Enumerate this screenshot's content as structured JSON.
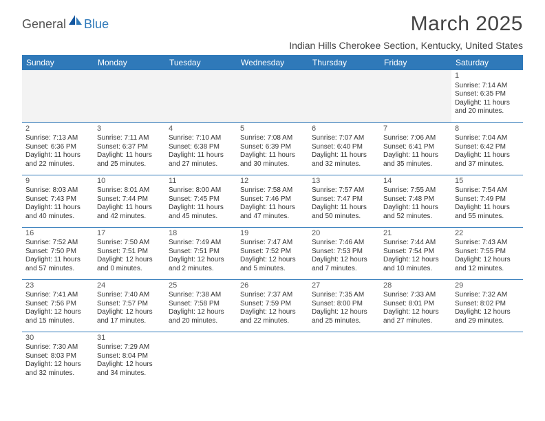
{
  "logo": {
    "part1": "General",
    "part2": "Blue"
  },
  "title": "March 2025",
  "location": "Indian Hills Cherokee Section, Kentucky, United States",
  "colors": {
    "header_bg": "#2f79b9",
    "header_fg": "#ffffff",
    "cell_border": "#2f79b9",
    "alt_row_bg": "#f3f3f3",
    "text": "#333333",
    "title_color": "#444444"
  },
  "day_headers": [
    "Sunday",
    "Monday",
    "Tuesday",
    "Wednesday",
    "Thursday",
    "Friday",
    "Saturday"
  ],
  "weeks": [
    [
      null,
      null,
      null,
      null,
      null,
      null,
      {
        "n": "1",
        "sunrise": "7:14 AM",
        "sunset": "6:35 PM",
        "dl1": "Daylight: 11 hours",
        "dl2": "and 20 minutes."
      }
    ],
    [
      {
        "n": "2",
        "sunrise": "7:13 AM",
        "sunset": "6:36 PM",
        "dl1": "Daylight: 11 hours",
        "dl2": "and 22 minutes."
      },
      {
        "n": "3",
        "sunrise": "7:11 AM",
        "sunset": "6:37 PM",
        "dl1": "Daylight: 11 hours",
        "dl2": "and 25 minutes."
      },
      {
        "n": "4",
        "sunrise": "7:10 AM",
        "sunset": "6:38 PM",
        "dl1": "Daylight: 11 hours",
        "dl2": "and 27 minutes."
      },
      {
        "n": "5",
        "sunrise": "7:08 AM",
        "sunset": "6:39 PM",
        "dl1": "Daylight: 11 hours",
        "dl2": "and 30 minutes."
      },
      {
        "n": "6",
        "sunrise": "7:07 AM",
        "sunset": "6:40 PM",
        "dl1": "Daylight: 11 hours",
        "dl2": "and 32 minutes."
      },
      {
        "n": "7",
        "sunrise": "7:06 AM",
        "sunset": "6:41 PM",
        "dl1": "Daylight: 11 hours",
        "dl2": "and 35 minutes."
      },
      {
        "n": "8",
        "sunrise": "7:04 AM",
        "sunset": "6:42 PM",
        "dl1": "Daylight: 11 hours",
        "dl2": "and 37 minutes."
      }
    ],
    [
      {
        "n": "9",
        "sunrise": "8:03 AM",
        "sunset": "7:43 PM",
        "dl1": "Daylight: 11 hours",
        "dl2": "and 40 minutes."
      },
      {
        "n": "10",
        "sunrise": "8:01 AM",
        "sunset": "7:44 PM",
        "dl1": "Daylight: 11 hours",
        "dl2": "and 42 minutes."
      },
      {
        "n": "11",
        "sunrise": "8:00 AM",
        "sunset": "7:45 PM",
        "dl1": "Daylight: 11 hours",
        "dl2": "and 45 minutes."
      },
      {
        "n": "12",
        "sunrise": "7:58 AM",
        "sunset": "7:46 PM",
        "dl1": "Daylight: 11 hours",
        "dl2": "and 47 minutes."
      },
      {
        "n": "13",
        "sunrise": "7:57 AM",
        "sunset": "7:47 PM",
        "dl1": "Daylight: 11 hours",
        "dl2": "and 50 minutes."
      },
      {
        "n": "14",
        "sunrise": "7:55 AM",
        "sunset": "7:48 PM",
        "dl1": "Daylight: 11 hours",
        "dl2": "and 52 minutes."
      },
      {
        "n": "15",
        "sunrise": "7:54 AM",
        "sunset": "7:49 PM",
        "dl1": "Daylight: 11 hours",
        "dl2": "and 55 minutes."
      }
    ],
    [
      {
        "n": "16",
        "sunrise": "7:52 AM",
        "sunset": "7:50 PM",
        "dl1": "Daylight: 11 hours",
        "dl2": "and 57 minutes."
      },
      {
        "n": "17",
        "sunrise": "7:50 AM",
        "sunset": "7:51 PM",
        "dl1": "Daylight: 12 hours",
        "dl2": "and 0 minutes."
      },
      {
        "n": "18",
        "sunrise": "7:49 AM",
        "sunset": "7:51 PM",
        "dl1": "Daylight: 12 hours",
        "dl2": "and 2 minutes."
      },
      {
        "n": "19",
        "sunrise": "7:47 AM",
        "sunset": "7:52 PM",
        "dl1": "Daylight: 12 hours",
        "dl2": "and 5 minutes."
      },
      {
        "n": "20",
        "sunrise": "7:46 AM",
        "sunset": "7:53 PM",
        "dl1": "Daylight: 12 hours",
        "dl2": "and 7 minutes."
      },
      {
        "n": "21",
        "sunrise": "7:44 AM",
        "sunset": "7:54 PM",
        "dl1": "Daylight: 12 hours",
        "dl2": "and 10 minutes."
      },
      {
        "n": "22",
        "sunrise": "7:43 AM",
        "sunset": "7:55 PM",
        "dl1": "Daylight: 12 hours",
        "dl2": "and 12 minutes."
      }
    ],
    [
      {
        "n": "23",
        "sunrise": "7:41 AM",
        "sunset": "7:56 PM",
        "dl1": "Daylight: 12 hours",
        "dl2": "and 15 minutes."
      },
      {
        "n": "24",
        "sunrise": "7:40 AM",
        "sunset": "7:57 PM",
        "dl1": "Daylight: 12 hours",
        "dl2": "and 17 minutes."
      },
      {
        "n": "25",
        "sunrise": "7:38 AM",
        "sunset": "7:58 PM",
        "dl1": "Daylight: 12 hours",
        "dl2": "and 20 minutes."
      },
      {
        "n": "26",
        "sunrise": "7:37 AM",
        "sunset": "7:59 PM",
        "dl1": "Daylight: 12 hours",
        "dl2": "and 22 minutes."
      },
      {
        "n": "27",
        "sunrise": "7:35 AM",
        "sunset": "8:00 PM",
        "dl1": "Daylight: 12 hours",
        "dl2": "and 25 minutes."
      },
      {
        "n": "28",
        "sunrise": "7:33 AM",
        "sunset": "8:01 PM",
        "dl1": "Daylight: 12 hours",
        "dl2": "and 27 minutes."
      },
      {
        "n": "29",
        "sunrise": "7:32 AM",
        "sunset": "8:02 PM",
        "dl1": "Daylight: 12 hours",
        "dl2": "and 29 minutes."
      }
    ],
    [
      {
        "n": "30",
        "sunrise": "7:30 AM",
        "sunset": "8:03 PM",
        "dl1": "Daylight: 12 hours",
        "dl2": "and 32 minutes."
      },
      {
        "n": "31",
        "sunrise": "7:29 AM",
        "sunset": "8:04 PM",
        "dl1": "Daylight: 12 hours",
        "dl2": "and 34 minutes."
      },
      null,
      null,
      null,
      null,
      null
    ]
  ]
}
